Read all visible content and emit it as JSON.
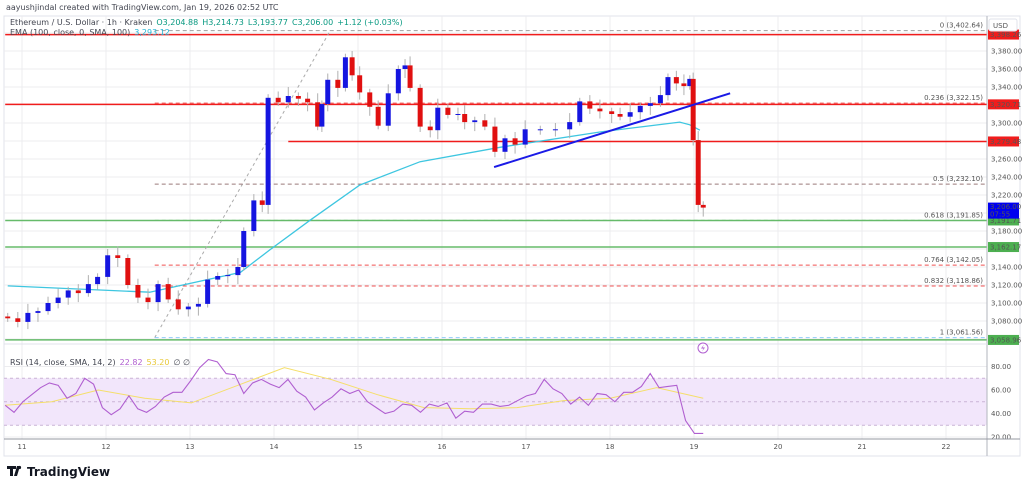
{
  "header": {
    "credit": "aayushjindal created with TradingView.com, Jan 19, 2026 02:52 UTC",
    "symbol": "Ethereum / U.S. Dollar · 1h · Kraken",
    "open": "O3,204.88",
    "high": "H3,214.73",
    "low": "L3,193.77",
    "close": "C3,206.00",
    "change": "+1.12 (+0.03%)",
    "ema_label": "EMA (100, close, 0, SMA, 100)",
    "ema_value": "3,293.12"
  },
  "currency_button": "USD",
  "branding": "TradingView",
  "colors": {
    "up": "#1515e0",
    "down": "#e01010",
    "ema": "#3ec6e0",
    "rsi": "#b05fd0",
    "rsi_sma": "#f5df6a",
    "rsi_band": "#f2e6fb",
    "support": "#66bb6a",
    "resistance": "#f01c1c",
    "trendline": "#1a1ae6",
    "last_price": "#0000f0"
  },
  "price_axis": {
    "labels": [
      "3,380.00",
      "3,360.00",
      "3,340.00",
      "3,300.00",
      "3,260.00",
      "3,240.00",
      "3,220.00",
      "3,180.00",
      "3,140.00",
      "3,120.00",
      "3,100.00",
      "3,080.00"
    ],
    "last_price": "3,206.00",
    "countdown": "07:55",
    "level_tags": [
      {
        "text": "3,398.26",
        "price": 3398.26,
        "color": "#f01c1c"
      },
      {
        "text": "3,320.71",
        "price": 3320.71,
        "color": "#f01c1c"
      },
      {
        "text": "3,279.48",
        "price": 3279.48,
        "color": "#f01c1c"
      },
      {
        "text": "3,191.71",
        "price": 3191.71,
        "color": "#4caf50"
      },
      {
        "text": "3,162.17",
        "price": 3162.17,
        "color": "#4caf50"
      },
      {
        "text": "3,058.96",
        "price": 3058.96,
        "color": "#4caf50"
      }
    ]
  },
  "time_axis": {
    "labels": [
      "11",
      "12",
      "13",
      "14",
      "15",
      "16",
      "17",
      "18",
      "19",
      "20",
      "21",
      "22"
    ]
  },
  "rsi": {
    "legend": "RSI (14, close, SMA, 14, 2)",
    "value": "22.82",
    "sma_value": "53.20",
    "flags": "∅ ∅",
    "axis_labels": [
      "80.00",
      "60.00",
      "40.00",
      "20.00"
    ]
  },
  "chart_data": {
    "type": "candlestick",
    "symbol": "ETH/USD",
    "interval": "1h",
    "x_unit": "day of January 2026",
    "ylim": [
      3045,
      3410
    ],
    "xlim": [
      10.8,
      22.5
    ],
    "grid": true,
    "candles_close": [
      [
        10.83,
        3083
      ],
      [
        10.95,
        3079
      ],
      [
        11.07,
        3089
      ],
      [
        11.19,
        3091
      ],
      [
        11.31,
        3100
      ],
      [
        11.43,
        3106
      ],
      [
        11.55,
        3114
      ],
      [
        11.67,
        3111
      ],
      [
        11.79,
        3121
      ],
      [
        11.9,
        3129
      ],
      [
        12.02,
        3153
      ],
      [
        12.14,
        3150
      ],
      [
        12.26,
        3120
      ],
      [
        12.38,
        3106
      ],
      [
        12.5,
        3101
      ],
      [
        12.62,
        3121
      ],
      [
        12.74,
        3104
      ],
      [
        12.86,
        3093
      ],
      [
        12.98,
        3096
      ],
      [
        13.1,
        3099
      ],
      [
        13.21,
        3126
      ],
      [
        13.33,
        3130
      ],
      [
        13.45,
        3131
      ],
      [
        13.57,
        3140
      ],
      [
        13.64,
        3180
      ],
      [
        13.76,
        3214
      ],
      [
        13.86,
        3209
      ],
      [
        13.93,
        3328
      ],
      [
        14.05,
        3323
      ],
      [
        14.17,
        3330
      ],
      [
        14.29,
        3327
      ],
      [
        14.4,
        3323
      ],
      [
        14.52,
        3296
      ],
      [
        14.57,
        3321
      ],
      [
        14.64,
        3348
      ],
      [
        14.76,
        3339
      ],
      [
        14.85,
        3373
      ],
      [
        14.93,
        3353
      ],
      [
        15.02,
        3334
      ],
      [
        15.14,
        3318
      ],
      [
        15.24,
        3297
      ],
      [
        15.36,
        3333
      ],
      [
        15.48,
        3360
      ],
      [
        15.56,
        3364
      ],
      [
        15.62,
        3339
      ],
      [
        15.74,
        3296
      ],
      [
        15.86,
        3292
      ],
      [
        15.95,
        3317
      ],
      [
        16.07,
        3309
      ],
      [
        16.19,
        3310
      ],
      [
        16.27,
        3301
      ],
      [
        16.39,
        3303
      ],
      [
        16.51,
        3296
      ],
      [
        16.63,
        3268
      ],
      [
        16.75,
        3283
      ],
      [
        16.87,
        3276
      ],
      [
        16.99,
        3293
      ],
      [
        17.17,
        3293
      ],
      [
        17.35,
        3293
      ],
      [
        17.52,
        3301
      ],
      [
        17.64,
        3324
      ],
      [
        17.76,
        3316
      ],
      [
        17.88,
        3313
      ],
      [
        18.02,
        3310
      ],
      [
        18.12,
        3307
      ],
      [
        18.24,
        3312
      ],
      [
        18.36,
        3319
      ],
      [
        18.48,
        3322
      ],
      [
        18.6,
        3331
      ],
      [
        18.69,
        3351
      ],
      [
        18.79,
        3344
      ],
      [
        18.88,
        3341
      ],
      [
        18.95,
        3349
      ],
      [
        18.99,
        3281
      ],
      [
        19.05,
        3209
      ],
      [
        19.11,
        3206
      ]
    ],
    "ema100": [
      [
        10.83,
        3119
      ],
      [
        12.52,
        3112
      ],
      [
        13.6,
        3134
      ],
      [
        13.95,
        3159
      ],
      [
        14.43,
        3192
      ],
      [
        15.02,
        3231
      ],
      [
        15.74,
        3257
      ],
      [
        16.69,
        3273
      ],
      [
        17.88,
        3290
      ],
      [
        18.83,
        3301
      ],
      [
        18.95,
        3298
      ],
      [
        19.07,
        3292
      ]
    ],
    "horizontal_levels": [
      {
        "price": 3398.26,
        "kind": "resistance",
        "from": 10.8
      },
      {
        "price": 3320.71,
        "kind": "resistance",
        "from": 10.8
      },
      {
        "price": 3279.48,
        "kind": "resistance",
        "from": 14.17
      },
      {
        "price": 3191.71,
        "kind": "support",
        "from": 10.8
      },
      {
        "price": 3162.17,
        "kind": "support",
        "from": 10.8
      },
      {
        "price": 3058.96,
        "kind": "support",
        "from": 10.8
      }
    ],
    "trendline": [
      [
        16.62,
        3251
      ],
      [
        19.43,
        3333
      ]
    ],
    "fibonacci": {
      "from": [
        12.58,
        3061.56
      ],
      "to": [
        14.67,
        3402.64
      ],
      "levels": [
        {
          "label": "0 (3,402.64)",
          "price": 3402.64,
          "color": "#9e9e9e"
        },
        {
          "label": "0.236 (3,322.15)",
          "price": 3322.15,
          "color": "#f05050"
        },
        {
          "label": "0.5 (3,232.10)",
          "price": 3232.1,
          "color": "#9a7a7a"
        },
        {
          "label": "0.618 (3,191.85)",
          "price": 3191.85,
          "color": "#66bb6a"
        },
        {
          "label": "0.764 (3,142.05)",
          "price": 3142.05,
          "color": "#f05050"
        },
        {
          "label": "0.832 (3,118.86)",
          "price": 3118.86,
          "color": "#f05050"
        },
        {
          "label": "1 (3,061.56)",
          "price": 3061.56,
          "color": "#90caf9"
        }
      ]
    },
    "rsi_range": [
      10.8,
      19.11
    ],
    "rsi_values": [
      47,
      41,
      50,
      56,
      62,
      66,
      64,
      53,
      57,
      70,
      65,
      45,
      39,
      44,
      55,
      44,
      41,
      46,
      54,
      58,
      58,
      68,
      79,
      86,
      84,
      74,
      73,
      57,
      66,
      69,
      65,
      62,
      69,
      59,
      54,
      43,
      49,
      54,
      61,
      57,
      60,
      50,
      45,
      40,
      42,
      48,
      47,
      41,
      48,
      46,
      49,
      36,
      42,
      41,
      48,
      48,
      46,
      47,
      51,
      55,
      57,
      69,
      61,
      57,
      48,
      54,
      47,
      57,
      56,
      50,
      58,
      58,
      63,
      74,
      62,
      63,
      64,
      34,
      23,
      23
    ],
    "rsi_sma": [
      47,
      50,
      60,
      53,
      49,
      64,
      79,
      69,
      56,
      45,
      44,
      45,
      51,
      53,
      62,
      53
    ],
    "rsi_ylim": [
      15,
      92
    ],
    "rsi_band": [
      30,
      70
    ]
  }
}
